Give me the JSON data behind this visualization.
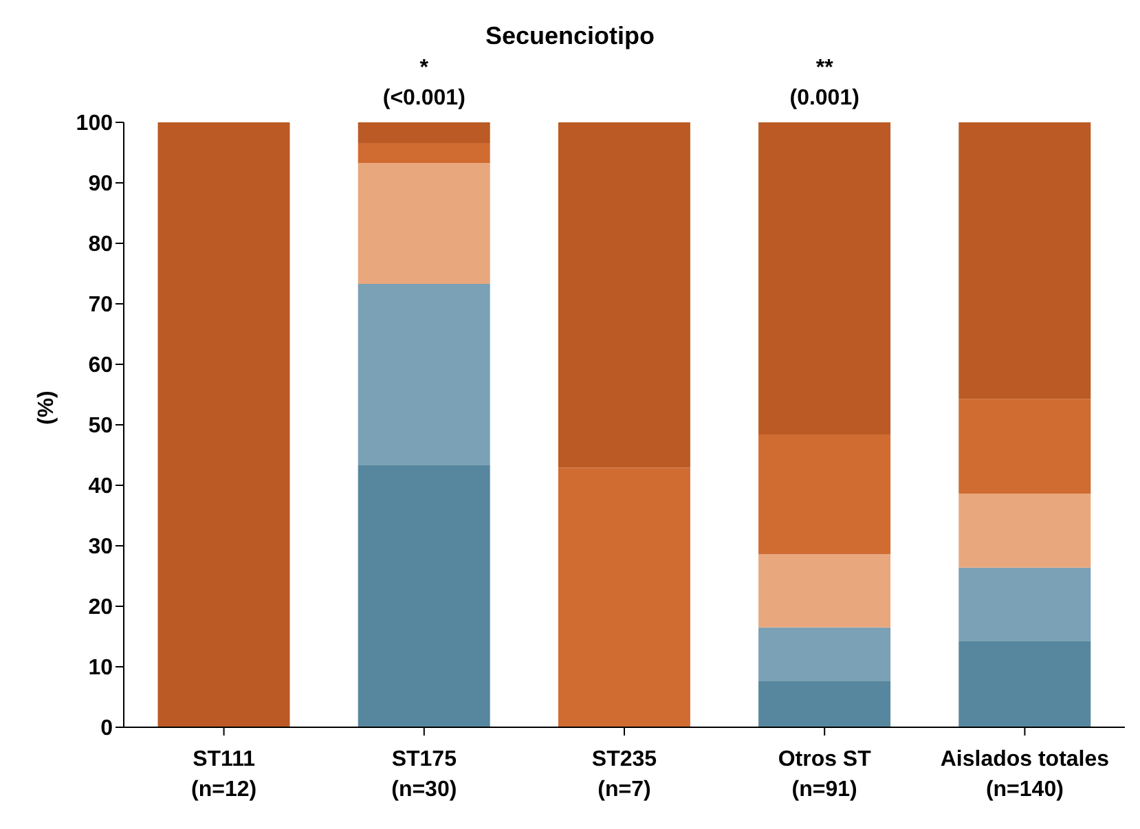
{
  "chart_data": {
    "type": "bar",
    "title": "Secuenciotipo",
    "ylabel": "(%)",
    "stacked": true,
    "grid": false,
    "legend": false,
    "categories": [
      "ST111\n(n=12)",
      "ST175\n(n=30)",
      "ST235\n(n=7)",
      "Otros ST\n(n=91)",
      "Aislados totales\n(n=140)"
    ],
    "series": [
      {
        "color": "#56879f",
        "values": [
          0,
          43.3,
          0,
          7.7,
          14.3
        ]
      },
      {
        "color": "#7aa1b5",
        "values": [
          0,
          30,
          0,
          8.8,
          12.1
        ]
      },
      {
        "color": "#e8a77c",
        "values": [
          0,
          20,
          0,
          12.1,
          12.2
        ]
      },
      {
        "color": "#d06b31",
        "values": [
          0,
          3.3,
          42.9,
          19.8,
          15.7
        ]
      },
      {
        "color": "#bb5a24",
        "values": [
          100,
          3.4,
          57.1,
          51.6,
          45.7
        ]
      }
    ],
    "ylim": [
      0,
      100
    ],
    "yticks": [
      0,
      10,
      20,
      30,
      40,
      50,
      60,
      70,
      80,
      90,
      100
    ],
    "annotations": [
      {
        "text": "*",
        "x": "ST175\n(n=30)",
        "y": 100
      },
      {
        "text": "(<0.001)",
        "x": "ST175\n(n=30)",
        "y": 100
      },
      {
        "text": "**",
        "x": "Otros ST\n(n=91)",
        "y": 100
      },
      {
        "text": "(0.001)",
        "x": "Otros ST\n(n=91)",
        "y": 100
      }
    ]
  }
}
